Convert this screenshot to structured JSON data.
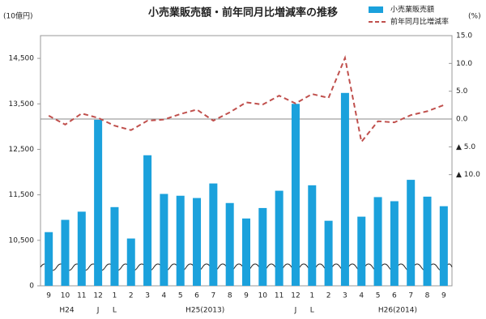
{
  "chart_data": {
    "type": "bar",
    "title": "小売業販売額・前年同月比増減率の推移",
    "y_label": "(10億円)",
    "y2_label": "(%)",
    "categories": [
      "9",
      "10",
      "11",
      "12",
      "1",
      "2",
      "3",
      "4",
      "5",
      "6",
      "7",
      "8",
      "9",
      "10",
      "11",
      "12",
      "1",
      "2",
      "3",
      "4",
      "5",
      "6",
      "7",
      "8",
      "9"
    ],
    "group_labels": [
      "H24",
      "J",
      "L",
      "H25(2013)",
      "J",
      "L",
      "H26(2014)"
    ],
    "ylim": [
      0,
      15000
    ],
    "y_break": [
      0,
      9500
    ],
    "yticks": [
      0,
      {
        "value": 10500,
        "label": "10,500"
      },
      {
        "value": 11500,
        "label": "11,500"
      },
      {
        "value": 12500,
        "label": "12,500"
      },
      {
        "value": 13500,
        "label": "13,500"
      },
      {
        "value": 14500,
        "label": "14,500"
      }
    ],
    "y2lim": [
      -30,
      15
    ],
    "y2ticks": [
      {
        "value": 15,
        "label": "15.0"
      },
      {
        "value": 10,
        "label": "10.0"
      },
      {
        "value": 5,
        "label": "5.0"
      },
      {
        "value": 0,
        "label": "0.0"
      },
      {
        "value": -5,
        "label": "▲ 5.0"
      },
      {
        "value": -10,
        "label": "▲ 10.0"
      }
    ],
    "legend": "top-right",
    "series": [
      {
        "name": "小売業販売額",
        "type": "bar",
        "color": "#1ba1dc",
        "axis": "y",
        "values": [
          10680,
          10950,
          11130,
          13150,
          11230,
          10540,
          12370,
          11520,
          11480,
          11430,
          11750,
          11320,
          10980,
          11210,
          11590,
          13500,
          11710,
          10930,
          13740,
          11020,
          11450,
          11360,
          11830,
          11460,
          11250
        ]
      },
      {
        "name": "前年同月比増減率",
        "type": "line",
        "color": "#c0504d",
        "axis": "y2",
        "values": [
          0.6,
          -1.0,
          1.0,
          0.2,
          -1.2,
          -2.0,
          -0.3,
          -0.1,
          0.9,
          1.7,
          -0.3,
          1.2,
          3.0,
          2.6,
          4.2,
          2.8,
          4.5,
          3.8,
          11.0,
          -4.1,
          -0.4,
          -0.6,
          0.7,
          1.4,
          2.5
        ]
      }
    ]
  }
}
